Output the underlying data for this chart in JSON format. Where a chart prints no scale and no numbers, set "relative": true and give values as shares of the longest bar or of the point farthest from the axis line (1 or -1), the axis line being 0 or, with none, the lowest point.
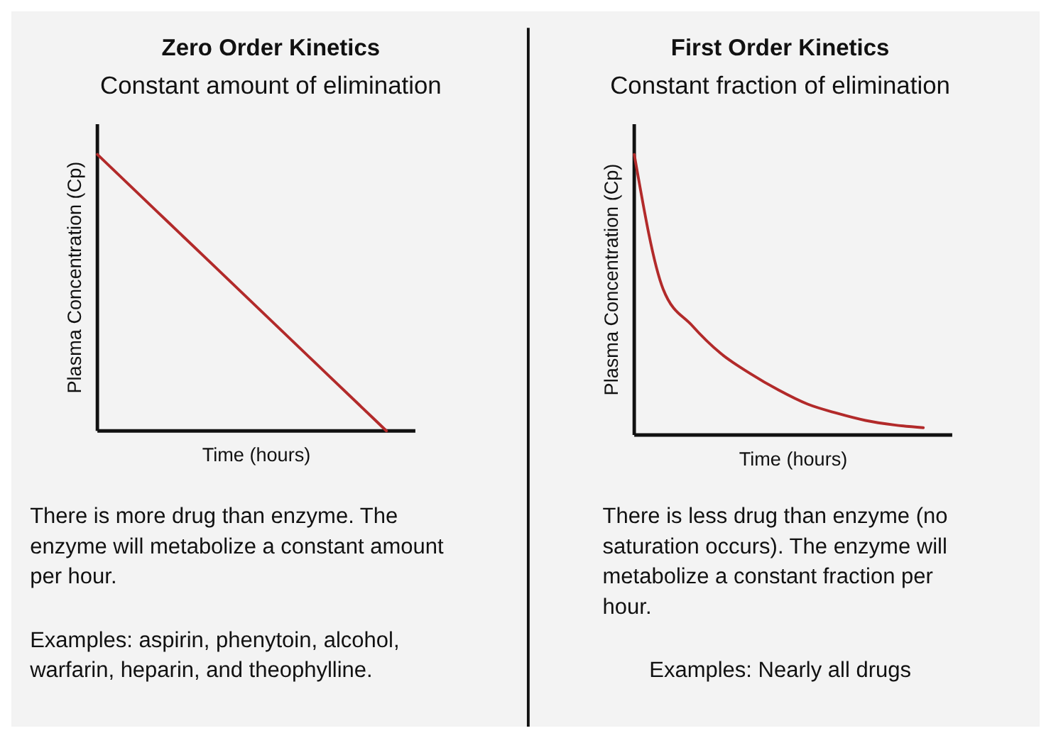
{
  "chart_data": [
    {
      "type": "line",
      "title": "Zero Order Kinetics",
      "subtitle": "Constant amount of elimination",
      "xlabel": "Time (hours)",
      "ylabel": "Plasma Concentration (Cp)",
      "relative": true,
      "categories": [
        null,
        null,
        null,
        null,
        null,
        null,
        null,
        null,
        null,
        null,
        null,
        null
      ],
      "series": [
        {
          "color": "#b22a2a",
          "values": [
            1,
            0.9,
            0.8,
            0.7,
            0.6,
            0.5,
            0.4,
            0.3,
            0.2,
            0.1,
            0,
            null
          ]
        }
      ],
      "annotations": [
        "There is more drug than enzyme. The enzyme will metabolize a constant amount per hour.",
        "Examples: aspirin, phenytoin, alcohol, warfarin, heparin, and theophylline."
      ]
    },
    {
      "type": "line",
      "title": "First Order Kinetics",
      "subtitle": "Constant fraction of elimination",
      "xlabel": "Time (hours)",
      "ylabel": "Plasma Concentration (Cp)",
      "relative": true,
      "categories": [
        null,
        null,
        null,
        null,
        null,
        null,
        null,
        null,
        null,
        null,
        null,
        null
      ],
      "series": [
        {
          "color": "#b22a2a",
          "values": [
            1,
            0.52,
            0.39,
            0.29,
            0.22,
            0.16,
            0.11,
            0.078,
            0.052,
            0.036,
            0.026,
            null
          ]
        }
      ],
      "annotations": [
        "There is less drug than enzyme (no saturation occurs). The enzyme will metabolize a constant fraction per hour.",
        "Examples: Nearly all drugs"
      ]
    }
  ]
}
